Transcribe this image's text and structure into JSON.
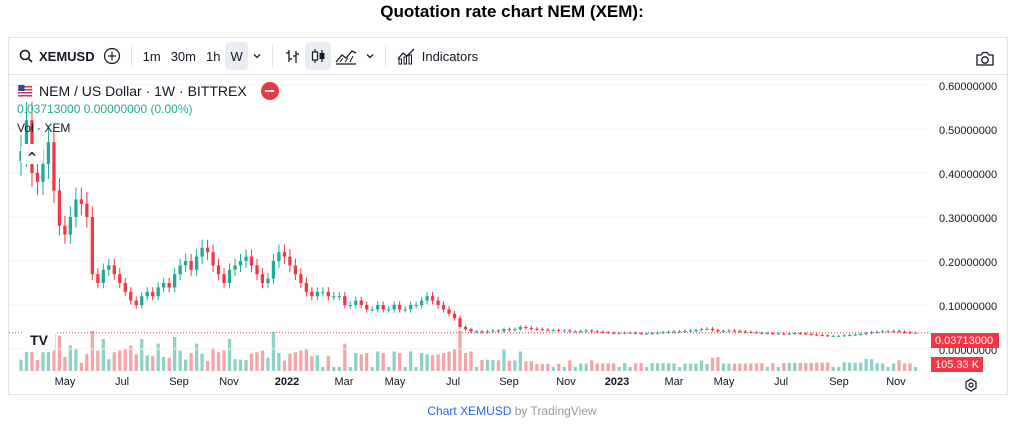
{
  "page": {
    "title": "Quotation rate chart NEM (XEM):"
  },
  "toolbar": {
    "symbol": "XEMUSD",
    "intervals": [
      "1m",
      "30m",
      "1h",
      "W"
    ],
    "active_interval": "W",
    "indicators_label": "Indicators",
    "icons": [
      "search-icon",
      "add-compare-icon",
      "bar-style-icon",
      "candle-style-icon",
      "area-style-icon",
      "chevron-down-icon",
      "indicators-icon",
      "camera-icon"
    ]
  },
  "legend": {
    "pair": "NEM / US Dollar · 1W · BITTREX",
    "last": "0.03713000",
    "change": "0.00000000",
    "change_pct": "(0.00%)",
    "volume_label": "Vol · XEM"
  },
  "price_axis": {
    "ticks": [
      "0.60000000",
      "0.50000000",
      "0.40000000",
      "0.30000000",
      "0.20000000",
      "0.10000000",
      "0.00000000"
    ],
    "current_price_tag": "0.03713000",
    "volume_tag": "105.33 K"
  },
  "time_axis": {
    "ticks": [
      {
        "label": "May",
        "bold": false
      },
      {
        "label": "Jul",
        "bold": false
      },
      {
        "label": "Sep",
        "bold": false
      },
      {
        "label": "Nov",
        "bold": false
      },
      {
        "label": "2022",
        "bold": true
      },
      {
        "label": "Mar",
        "bold": false
      },
      {
        "label": "May",
        "bold": false
      },
      {
        "label": "Jul",
        "bold": false
      },
      {
        "label": "Sep",
        "bold": false
      },
      {
        "label": "Nov",
        "bold": false
      },
      {
        "label": "2023",
        "bold": true
      },
      {
        "label": "Mar",
        "bold": false
      },
      {
        "label": "May",
        "bold": false
      },
      {
        "label": "Jul",
        "bold": false
      },
      {
        "label": "Sep",
        "bold": false
      },
      {
        "label": "Nov",
        "bold": false
      }
    ]
  },
  "colors": {
    "up": "#22ab94",
    "down": "#f23645",
    "vol_up": "#8ed1c6",
    "vol_down": "#f5a5a8",
    "grid": "#f0f3fa"
  },
  "watermark": "TV",
  "credit": {
    "link": "Chart XEMUSD",
    "suffix": " by TradingView"
  },
  "chart_data": {
    "type": "candlestick",
    "title": "NEM / US Dollar · 1W · BITTREX",
    "ylim": [
      0,
      0.6
    ],
    "close_prices": [
      0.45,
      0.52,
      0.4,
      0.38,
      0.42,
      0.47,
      0.36,
      0.28,
      0.26,
      0.3,
      0.34,
      0.33,
      0.3,
      0.17,
      0.15,
      0.18,
      0.19,
      0.17,
      0.15,
      0.13,
      0.11,
      0.1,
      0.12,
      0.13,
      0.12,
      0.14,
      0.15,
      0.14,
      0.17,
      0.19,
      0.2,
      0.18,
      0.21,
      0.23,
      0.22,
      0.19,
      0.17,
      0.15,
      0.18,
      0.19,
      0.2,
      0.21,
      0.19,
      0.17,
      0.15,
      0.16,
      0.2,
      0.22,
      0.21,
      0.19,
      0.17,
      0.15,
      0.13,
      0.12,
      0.13,
      0.13,
      0.12,
      0.12,
      0.12,
      0.1,
      0.1,
      0.11,
      0.1,
      0.09,
      0.09,
      0.1,
      0.09,
      0.09,
      0.1,
      0.09,
      0.09,
      0.1,
      0.1,
      0.11,
      0.12,
      0.11,
      0.1,
      0.09,
      0.08,
      0.07,
      0.05,
      0.045,
      0.04,
      0.04,
      0.038,
      0.04,
      0.042,
      0.04,
      0.045,
      0.043,
      0.045,
      0.05,
      0.048,
      0.046,
      0.045,
      0.044,
      0.043,
      0.043,
      0.042,
      0.042,
      0.04,
      0.04,
      0.041,
      0.042,
      0.04,
      0.039,
      0.038,
      0.037,
      0.036,
      0.036,
      0.037,
      0.037,
      0.036,
      0.035,
      0.035,
      0.036,
      0.037,
      0.038,
      0.039,
      0.04,
      0.04,
      0.041,
      0.042,
      0.043,
      0.045,
      0.046,
      0.043,
      0.04,
      0.041,
      0.042,
      0.041,
      0.04,
      0.039,
      0.038,
      0.037,
      0.036,
      0.036,
      0.035,
      0.035,
      0.034,
      0.035,
      0.036,
      0.035,
      0.034,
      0.033,
      0.032,
      0.031,
      0.03,
      0.03,
      0.03,
      0.031,
      0.032,
      0.033,
      0.034,
      0.036,
      0.038,
      0.039,
      0.04,
      0.04,
      0.041,
      0.039,
      0.038,
      0.037,
      0.037
    ]
  }
}
